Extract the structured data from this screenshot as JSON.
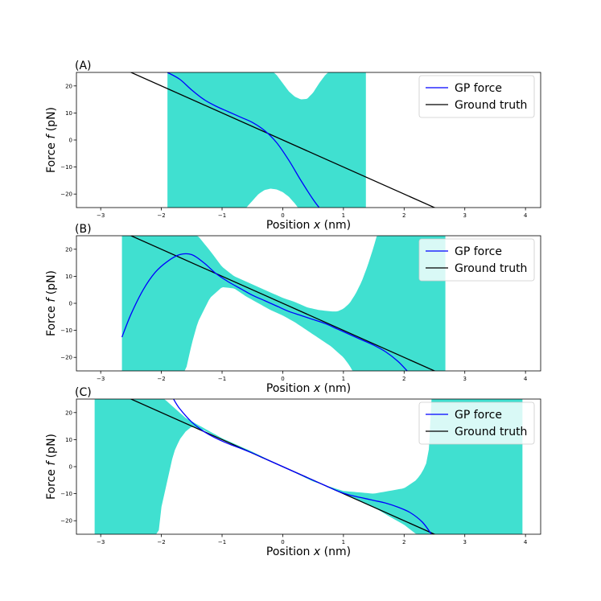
{
  "colors": {
    "band": "#40E0D0",
    "gp_line": "#0000FF",
    "truth_line": "#000000",
    "axes": "#000000"
  },
  "chart_data": [
    {
      "type": "line",
      "panel_label": "(A)",
      "xlabel_prefix": "Position ",
      "xlabel_var": "x",
      "xlabel_unit": " (nm)",
      "ylabel_prefix": "Force ",
      "ylabel_var": "f",
      "ylabel_unit": " (pN)",
      "xlim": [
        -3.4,
        4.25
      ],
      "ylim": [
        -25,
        25
      ],
      "xticks": [
        -3,
        -2,
        -1,
        0,
        1,
        2,
        3,
        4
      ],
      "yticks": [
        -20,
        -10,
        0,
        10,
        20
      ],
      "legend_position": "top-right",
      "legend": [
        "GP force",
        "Ground truth"
      ],
      "ground_truth": {
        "slope": -10,
        "intercept": 0
      },
      "gp_force": {
        "x": [
          -1.9,
          -1.7,
          -1.5,
          -1.3,
          -1.1,
          -0.9,
          -0.7,
          -0.5,
          -0.3,
          -0.1,
          0.1,
          0.3,
          0.5,
          0.6
        ],
        "y": [
          25,
          22.5,
          18.5,
          15,
          12.5,
          10.5,
          8.5,
          6.5,
          3.5,
          -1,
          -7.5,
          -15,
          -22,
          -25
        ]
      },
      "band_x_range": [
        -1.9,
        1.37
      ],
      "band_upper": {
        "x": [
          -1.9,
          -0.15,
          -0.1,
          0,
          0.1,
          0.2,
          0.3,
          0.4,
          0.5,
          0.6,
          0.7,
          0.75,
          1.37
        ],
        "y": [
          25,
          25,
          24,
          21,
          18,
          16,
          15,
          15.2,
          17.5,
          21,
          24,
          25,
          25
        ]
      },
      "band_lower": {
        "x": [
          -1.9,
          -0.6,
          -0.5,
          -0.4,
          -0.3,
          -0.2,
          -0.1,
          0,
          0.1,
          0.2,
          0.25,
          1.37
        ],
        "y": [
          -25,
          -25,
          -22.5,
          -20,
          -18.5,
          -18,
          -18.3,
          -19.3,
          -21,
          -23.5,
          -25,
          -25
        ]
      }
    },
    {
      "type": "line",
      "panel_label": "(B)",
      "xlabel_prefix": "Position ",
      "xlabel_var": "x",
      "xlabel_unit": " (nm)",
      "ylabel_prefix": "Force ",
      "ylabel_var": "f",
      "ylabel_unit": " (pN)",
      "xlim": [
        -3.4,
        4.25
      ],
      "ylim": [
        -25,
        25
      ],
      "xticks": [
        -3,
        -2,
        -1,
        0,
        1,
        2,
        3,
        4
      ],
      "yticks": [
        -20,
        -10,
        0,
        10,
        20
      ],
      "legend_position": "top-right",
      "legend": [
        "GP force",
        "Ground truth"
      ],
      "ground_truth": {
        "slope": -10,
        "intercept": 0
      },
      "gp_force": {
        "x": [
          -2.65,
          -2.5,
          -2.3,
          -2.1,
          -1.9,
          -1.7,
          -1.5,
          -1.3,
          -1.1,
          -0.9,
          -0.7,
          -0.5,
          -0.3,
          -0.1,
          0.1,
          0.3,
          0.5,
          0.7,
          0.9,
          1.1,
          1.3,
          1.5,
          1.7,
          1.9,
          2.05
        ],
        "y": [
          -12.5,
          -4,
          5,
          11.5,
          15.5,
          18,
          18,
          15,
          11,
          8,
          5.5,
          3,
          1,
          -1,
          -3,
          -4.5,
          -6,
          -7.5,
          -9.5,
          -11.5,
          -13.5,
          -15.5,
          -18,
          -21.5,
          -25
        ]
      },
      "band_x_range": [
        -2.65,
        2.68
      ],
      "band_upper": {
        "x": [
          -2.65,
          -1.4,
          -1.2,
          -1.0,
          -0.8,
          -0.6,
          -0.4,
          -0.2,
          0,
          0.2,
          0.4,
          0.6,
          0.8,
          0.9,
          1.0,
          1.1,
          1.2,
          1.3,
          1.4,
          1.5,
          1.55,
          2.68
        ],
        "y": [
          25,
          25,
          19.5,
          13.5,
          10,
          8,
          6,
          4,
          2,
          0.5,
          -1.5,
          -2.5,
          -3,
          -3,
          -2,
          0,
          3.5,
          8,
          14,
          21,
          25,
          25
        ]
      },
      "band_lower": {
        "x": [
          -2.65,
          -1.6,
          -1.5,
          -1.4,
          -1.2,
          -1.0,
          -0.8,
          -0.6,
          -0.4,
          -0.2,
          0,
          0.2,
          0.4,
          0.6,
          0.8,
          0.9,
          1.0,
          1.1,
          1.15,
          2.68
        ],
        "y": [
          -25,
          -25,
          -15,
          -7,
          2,
          6,
          5.5,
          2.5,
          0,
          -2.5,
          -4.5,
          -7,
          -10,
          -13,
          -16,
          -18,
          -20,
          -23,
          -25,
          -25
        ]
      }
    },
    {
      "type": "line",
      "panel_label": "(C)",
      "xlabel_prefix": "Position ",
      "xlabel_var": "x",
      "xlabel_unit": " (nm)",
      "ylabel_prefix": "Force ",
      "ylabel_var": "f",
      "ylabel_unit": " (pN)",
      "xlim": [
        -3.4,
        4.25
      ],
      "ylim": [
        -25,
        25
      ],
      "xticks": [
        -3,
        -2,
        -1,
        0,
        1,
        2,
        3,
        4
      ],
      "yticks": [
        -20,
        -10,
        0,
        10,
        20
      ],
      "legend_position": "top-right",
      "legend": [
        "GP force",
        "Ground truth"
      ],
      "ground_truth": {
        "slope": -10,
        "intercept": 0
      },
      "gp_force": {
        "x": [
          -1.8,
          -1.7,
          -1.5,
          -1.3,
          -1.1,
          -0.9,
          -0.7,
          -0.5,
          -0.3,
          -0.1,
          0.1,
          0.3,
          0.5,
          0.7,
          0.9,
          1.1,
          1.3,
          1.5,
          1.7,
          1.9,
          2.1,
          2.3,
          2.45
        ],
        "y": [
          25,
          21.5,
          16.5,
          13,
          10.5,
          8.5,
          6.8,
          5,
          3,
          1,
          -1,
          -3,
          -5,
          -7,
          -9,
          -10.5,
          -11.5,
          -12.5,
          -13.5,
          -15,
          -17,
          -20.5,
          -25
        ]
      },
      "band_x_range": [
        -3.1,
        3.95
      ],
      "band_upper": {
        "x": [
          -3.1,
          -1.95,
          -1.8,
          -1.6,
          -1.4,
          -1.2,
          -1.0,
          -0.5,
          0,
          0.5,
          1.0,
          1.5,
          2.0,
          2.2,
          2.3,
          2.4,
          2.45,
          3.95
        ],
        "y": [
          25,
          25,
          22,
          18,
          15.5,
          13,
          10.5,
          5.5,
          0,
          -5.5,
          -9,
          -10,
          -8,
          -5,
          -2,
          3,
          25,
          25
        ]
      },
      "band_lower": {
        "x": [
          -3.1,
          -2.05,
          -2.0,
          -1.9,
          -1.8,
          -1.7,
          -1.6,
          -1.5,
          -1.3,
          -1.0,
          -0.5,
          0,
          0.5,
          1.0,
          1.5,
          1.8,
          2.0,
          2.2,
          3.95
        ],
        "y": [
          -25,
          -25,
          -15,
          -5,
          5,
          10,
          13,
          14.8,
          13.5,
          10,
          5,
          0,
          -5,
          -10,
          -15,
          -19,
          -21.5,
          -25,
          -25
        ]
      }
    }
  ]
}
